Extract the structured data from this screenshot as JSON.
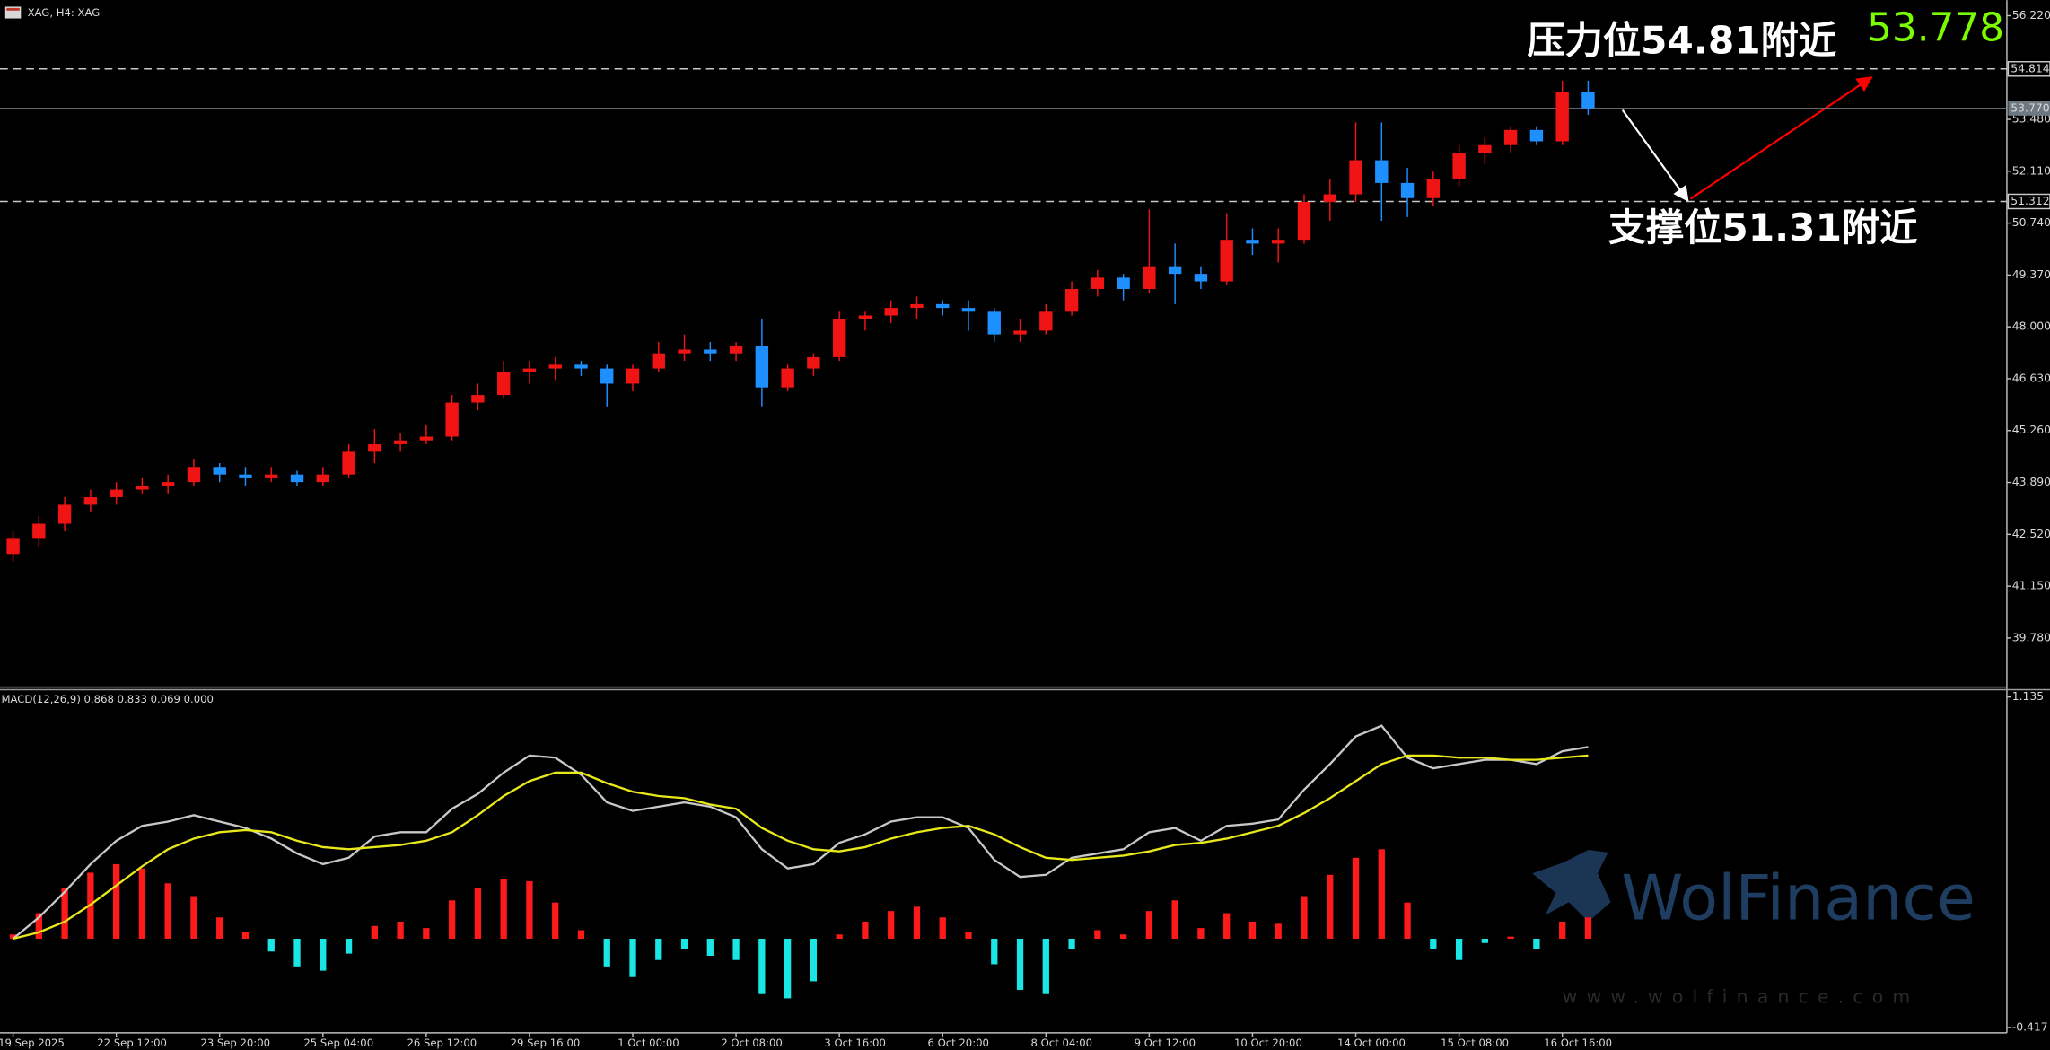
{
  "chart_data": [
    {
      "type": "candlestick",
      "title": "XAG, H4:  XAG",
      "categories": [
        "19 Sep 2025",
        null,
        null,
        null,
        "22 Sep 12:00",
        null,
        null,
        null,
        "23 Sep 20:00",
        null,
        null,
        null,
        "25 Sep 04:00",
        null,
        null,
        null,
        "26 Sep 12:00",
        null,
        null,
        null,
        "29 Sep 16:00",
        null,
        null,
        null,
        "1 Oct 00:00",
        null,
        null,
        null,
        "2 Oct 08:00",
        null,
        null,
        null,
        "3 Oct 16:00",
        null,
        null,
        null,
        "6 Oct 20:00",
        null,
        null,
        null,
        "8 Oct 04:00",
        null,
        null,
        null,
        "9 Oct 12:00",
        null,
        null,
        null,
        "10 Oct 20:00",
        null,
        null,
        null,
        "14 Oct 00:00",
        null,
        null,
        null,
        "15 Oct 08:00",
        null,
        null,
        null,
        "16 Oct 16:00",
        null
      ],
      "candles": [
        [
          42.0,
          42.6,
          41.8,
          42.4
        ],
        [
          42.4,
          43.0,
          42.2,
          42.8
        ],
        [
          42.8,
          43.5,
          42.6,
          43.3
        ],
        [
          43.3,
          43.7,
          43.1,
          43.5
        ],
        [
          43.5,
          43.9,
          43.3,
          43.7
        ],
        [
          43.7,
          44.0,
          43.6,
          43.8
        ],
        [
          43.8,
          44.1,
          43.6,
          43.9
        ],
        [
          43.9,
          44.5,
          43.8,
          44.3
        ],
        [
          44.3,
          44.4,
          43.9,
          44.1
        ],
        [
          44.1,
          44.3,
          43.8,
          44.0
        ],
        [
          44.0,
          44.3,
          43.9,
          44.1
        ],
        [
          44.1,
          44.2,
          43.8,
          43.9
        ],
        [
          43.9,
          44.3,
          43.8,
          44.1
        ],
        [
          44.1,
          44.9,
          44.0,
          44.7
        ],
        [
          44.7,
          45.3,
          44.4,
          44.9
        ],
        [
          44.9,
          45.2,
          44.7,
          45.0
        ],
        [
          45.0,
          45.4,
          44.9,
          45.1
        ],
        [
          45.1,
          46.2,
          45.0,
          46.0
        ],
        [
          46.0,
          46.5,
          45.8,
          46.2
        ],
        [
          46.2,
          47.1,
          46.1,
          46.8
        ],
        [
          46.8,
          47.1,
          46.5,
          46.9
        ],
        [
          46.9,
          47.2,
          46.6,
          47.0
        ],
        [
          47.0,
          47.1,
          46.7,
          46.9
        ],
        [
          46.9,
          47.0,
          45.9,
          46.5
        ],
        [
          46.5,
          47.0,
          46.3,
          46.9
        ],
        [
          46.9,
          47.6,
          46.8,
          47.3
        ],
        [
          47.3,
          47.8,
          47.1,
          47.4
        ],
        [
          47.4,
          47.6,
          47.1,
          47.3
        ],
        [
          47.3,
          47.6,
          47.1,
          47.5
        ],
        [
          47.5,
          48.2,
          45.9,
          46.4
        ],
        [
          46.4,
          47.0,
          46.3,
          46.9
        ],
        [
          46.9,
          47.3,
          46.7,
          47.2
        ],
        [
          47.2,
          48.4,
          47.1,
          48.2
        ],
        [
          48.2,
          48.4,
          47.9,
          48.3
        ],
        [
          48.3,
          48.7,
          48.1,
          48.5
        ],
        [
          48.5,
          48.8,
          48.2,
          48.6
        ],
        [
          48.6,
          48.7,
          48.3,
          48.5
        ],
        [
          48.5,
          48.7,
          47.9,
          48.4
        ],
        [
          48.4,
          48.5,
          47.6,
          47.8
        ],
        [
          47.8,
          48.2,
          47.6,
          47.9
        ],
        [
          47.9,
          48.6,
          47.8,
          48.4
        ],
        [
          48.4,
          49.2,
          48.3,
          49.0
        ],
        [
          49.0,
          49.5,
          48.8,
          49.3
        ],
        [
          49.3,
          49.4,
          48.7,
          49.0
        ],
        [
          49.0,
          51.1,
          48.9,
          49.6
        ],
        [
          49.6,
          50.2,
          48.6,
          49.4
        ],
        [
          49.4,
          49.6,
          49.0,
          49.2
        ],
        [
          49.2,
          51.0,
          49.1,
          50.3
        ],
        [
          50.3,
          50.6,
          49.9,
          50.2
        ],
        [
          50.2,
          50.6,
          49.7,
          50.3
        ],
        [
          50.3,
          51.5,
          50.2,
          51.3
        ],
        [
          51.3,
          51.9,
          50.8,
          51.5
        ],
        [
          51.5,
          53.4,
          51.3,
          52.4
        ],
        [
          52.4,
          53.4,
          50.8,
          51.8
        ],
        [
          51.8,
          52.2,
          50.9,
          51.4
        ],
        [
          51.4,
          52.1,
          51.2,
          51.9
        ],
        [
          51.9,
          52.8,
          51.7,
          52.6
        ],
        [
          52.6,
          53.0,
          52.3,
          52.8
        ],
        [
          52.8,
          53.3,
          52.6,
          53.2
        ],
        [
          53.2,
          53.3,
          52.8,
          52.9
        ],
        [
          52.9,
          54.5,
          52.8,
          54.2
        ],
        [
          54.2,
          54.5,
          53.6,
          53.778
        ]
      ],
      "up_color": "#f01414",
      "down_color": "#1e8fff",
      "ylim": [
        38.5,
        56.63
      ],
      "yticks": [
        {
          "value": 56.22,
          "label": "56.220"
        },
        {
          "value": 53.48,
          "label": "53.480"
        },
        {
          "value": 52.11,
          "label": "52.110"
        },
        {
          "value": 50.74,
          "label": "50.740"
        },
        {
          "value": 49.37,
          "label": "49.370"
        },
        {
          "value": 48.0,
          "label": "48.000"
        },
        {
          "value": 46.63,
          "label": "46.630"
        },
        {
          "value": 45.26,
          "label": "45.260"
        },
        {
          "value": 43.89,
          "label": "43.890"
        },
        {
          "value": 42.52,
          "label": "42.520"
        },
        {
          "value": 41.15,
          "label": "41.150"
        },
        {
          "value": 39.78,
          "label": "39.780"
        }
      ],
      "levels": [
        {
          "value": 54.814,
          "label": "54.814"
        },
        {
          "value": 51.312,
          "label": "51.312"
        }
      ],
      "last_price": {
        "value": 53.77,
        "label": "53.770"
      },
      "bid_label": "53.778",
      "annotations": [
        "压力位54.81附近",
        "支撑位51.31附近"
      ]
    },
    {
      "type": "combo",
      "title": "MACD(12,26,9) 0.868 0.833 0.069 0.000",
      "ylim": [
        -0.442,
        1.166
      ],
      "yticks": [
        1.135,
        -0.417
      ],
      "series": [
        {
          "mark": "bar",
          "color": "#ff1a1a",
          "negative_color": "#1ae6e6",
          "values": [
            0.02,
            0.12,
            0.24,
            0.31,
            0.35,
            0.33,
            0.26,
            0.2,
            0.1,
            0.03,
            -0.06,
            -0.13,
            -0.15,
            -0.07,
            0.06,
            0.08,
            0.05,
            0.18,
            0.24,
            0.28,
            0.27,
            0.17,
            0.04,
            -0.13,
            -0.18,
            -0.1,
            -0.05,
            -0.08,
            -0.1,
            -0.26,
            -0.28,
            -0.2,
            0.02,
            0.08,
            0.13,
            0.15,
            0.1,
            0.03,
            -0.12,
            -0.24,
            -0.26,
            -0.05,
            0.04,
            0.02,
            0.13,
            0.18,
            0.05,
            0.12,
            0.08,
            0.07,
            0.2,
            0.3,
            0.38,
            0.42,
            0.17,
            -0.05,
            -0.1,
            -0.02,
            0.01,
            -0.05,
            0.08,
            0.1
          ]
        },
        {
          "mark": "line",
          "color": "#c8c8c8",
          "values": [
            0.0,
            0.1,
            0.22,
            0.35,
            0.46,
            0.53,
            0.55,
            0.58,
            0.55,
            0.52,
            0.47,
            0.4,
            0.35,
            0.38,
            0.48,
            0.5,
            0.5,
            0.61,
            0.68,
            0.78,
            0.86,
            0.85,
            0.77,
            0.64,
            0.6,
            0.62,
            0.64,
            0.62,
            0.57,
            0.42,
            0.33,
            0.35,
            0.45,
            0.49,
            0.55,
            0.57,
            0.57,
            0.52,
            0.37,
            0.29,
            0.3,
            0.38,
            0.4,
            0.42,
            0.5,
            0.52,
            0.46,
            0.53,
            0.54,
            0.56,
            0.7,
            0.82,
            0.95,
            1.0,
            0.85,
            0.8,
            0.82,
            0.84,
            0.84,
            0.82,
            0.88,
            0.9
          ]
        },
        {
          "mark": "line",
          "color": "#e8e81a",
          "values": [
            0.0,
            0.03,
            0.08,
            0.16,
            0.25,
            0.34,
            0.42,
            0.47,
            0.5,
            0.51,
            0.5,
            0.46,
            0.43,
            0.42,
            0.43,
            0.44,
            0.46,
            0.5,
            0.58,
            0.67,
            0.74,
            0.78,
            0.78,
            0.73,
            0.69,
            0.67,
            0.66,
            0.63,
            0.61,
            0.52,
            0.46,
            0.42,
            0.41,
            0.43,
            0.47,
            0.5,
            0.52,
            0.53,
            0.49,
            0.43,
            0.38,
            0.37,
            0.38,
            0.39,
            0.41,
            0.44,
            0.45,
            0.47,
            0.5,
            0.53,
            0.59,
            0.66,
            0.74,
            0.82,
            0.86,
            0.86,
            0.85,
            0.85,
            0.84,
            0.84,
            0.85,
            0.86
          ]
        }
      ]
    }
  ],
  "watermark": {
    "brand": "WolFinance",
    "url": "www.wolfinance.com"
  }
}
